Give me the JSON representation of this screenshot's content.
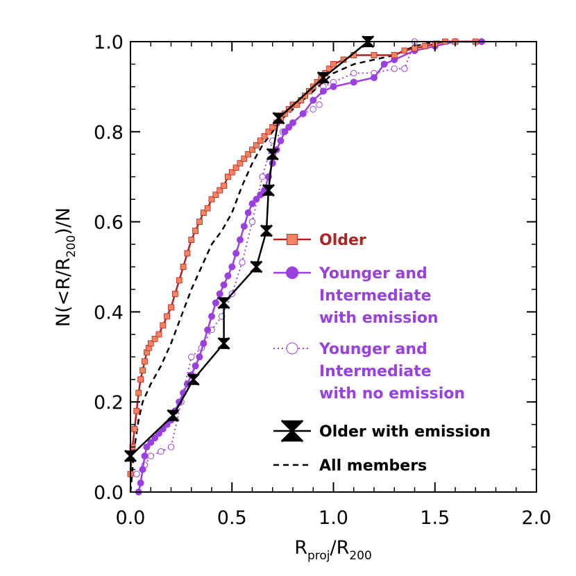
{
  "chart_data": {
    "type": "line",
    "xlabel_main": "R",
    "xlabel_sub1": "proj",
    "xlabel_mid": "/R",
    "xlabel_sub2": "200",
    "ylabel_a": "N(<R/R",
    "ylabel_sub": "200",
    "ylabel_b": ")/N",
    "xlim": [
      0,
      2
    ],
    "ylim": [
      0,
      1
    ],
    "x_ticks": [
      0,
      0.5,
      1,
      1.5,
      2
    ],
    "x_tick_labels": [
      "0.0",
      "0.5",
      "1.0",
      "1.5",
      "2.0"
    ],
    "y_ticks": [
      0,
      0.2,
      0.4,
      0.6,
      0.8,
      1
    ],
    "y_tick_labels": [
      "0.0",
      "0.2",
      "0.4",
      "0.6",
      "0.8",
      "1.0"
    ],
    "grid": false,
    "legend_position": "center-right",
    "series": [
      {
        "id": "older",
        "color": "#b22222",
        "marker_fill": "#f4845f",
        "marker": "square",
        "line": "solid",
        "legend": [
          "Older"
        ],
        "x": [
          0,
          0.01,
          0.02,
          0.03,
          0.04,
          0.05,
          0.06,
          0.07,
          0.08,
          0.09,
          0.1,
          0.12,
          0.14,
          0.16,
          0.18,
          0.2,
          0.22,
          0.24,
          0.26,
          0.28,
          0.3,
          0.32,
          0.34,
          0.36,
          0.38,
          0.4,
          0.42,
          0.44,
          0.46,
          0.48,
          0.5,
          0.52,
          0.54,
          0.56,
          0.58,
          0.6,
          0.62,
          0.64,
          0.66,
          0.68,
          0.7,
          0.72,
          0.74,
          0.76,
          0.78,
          0.8,
          0.82,
          0.84,
          0.86,
          0.88,
          0.9,
          0.92,
          0.94,
          0.96,
          0.98,
          1.0,
          1.05,
          1.1,
          1.2,
          1.3,
          1.35,
          1.4,
          1.45,
          1.5,
          1.55,
          1.6,
          1.7
        ],
        "y": [
          0.04,
          0.1,
          0.14,
          0.18,
          0.22,
          0.25,
          0.27,
          0.29,
          0.31,
          0.32,
          0.33,
          0.34,
          0.35,
          0.37,
          0.39,
          0.41,
          0.44,
          0.47,
          0.5,
          0.53,
          0.56,
          0.58,
          0.6,
          0.62,
          0.63,
          0.65,
          0.66,
          0.67,
          0.68,
          0.7,
          0.71,
          0.72,
          0.73,
          0.74,
          0.75,
          0.76,
          0.77,
          0.78,
          0.79,
          0.8,
          0.81,
          0.82,
          0.83,
          0.84,
          0.85,
          0.86,
          0.86,
          0.87,
          0.88,
          0.89,
          0.9,
          0.91,
          0.92,
          0.93,
          0.94,
          0.95,
          0.96,
          0.97,
          0.97,
          0.97,
          0.98,
          0.985,
          0.99,
          0.995,
          1.0,
          1.0,
          1.0
        ]
      },
      {
        "id": "younger-emission",
        "color": "#9b40e0",
        "marker_fill": "#9b40e0",
        "marker": "circle",
        "line": "solid",
        "legend": [
          "Younger and",
          "Intermediate",
          "with emission"
        ],
        "x": [
          0.04,
          0.05,
          0.06,
          0.07,
          0.08,
          0.1,
          0.12,
          0.14,
          0.16,
          0.18,
          0.2,
          0.22,
          0.24,
          0.26,
          0.28,
          0.3,
          0.32,
          0.34,
          0.36,
          0.38,
          0.4,
          0.42,
          0.44,
          0.46,
          0.48,
          0.5,
          0.52,
          0.54,
          0.56,
          0.58,
          0.6,
          0.62,
          0.64,
          0.66,
          0.68,
          0.7,
          0.72,
          0.74,
          0.76,
          0.78,
          0.8,
          0.85,
          0.9,
          0.95,
          1.0,
          1.1,
          1.2,
          1.25,
          1.3,
          1.4,
          1.5,
          1.6,
          1.73
        ],
        "y": [
          0.0,
          0.02,
          0.05,
          0.08,
          0.1,
          0.11,
          0.12,
          0.13,
          0.14,
          0.15,
          0.16,
          0.18,
          0.2,
          0.22,
          0.24,
          0.26,
          0.28,
          0.3,
          0.33,
          0.36,
          0.39,
          0.42,
          0.44,
          0.46,
          0.48,
          0.5,
          0.53,
          0.56,
          0.59,
          0.62,
          0.64,
          0.65,
          0.66,
          0.67,
          0.7,
          0.73,
          0.76,
          0.78,
          0.8,
          0.81,
          0.82,
          0.84,
          0.87,
          0.89,
          0.9,
          0.91,
          0.92,
          0.95,
          0.96,
          0.98,
          0.99,
          1.0,
          1.0
        ]
      },
      {
        "id": "younger-no-emission",
        "color": "#9b40e0",
        "marker_fill": "#ffffff",
        "marker": "open-circle",
        "line": "dotted",
        "legend": [
          "Younger and",
          "Intermediate",
          "with no emission"
        ],
        "x": [
          0.03,
          0.07,
          0.1,
          0.15,
          0.2,
          0.25,
          0.3,
          0.35,
          0.4,
          0.45,
          0.5,
          0.55,
          0.6,
          0.65,
          0.7,
          0.75,
          0.8,
          0.85,
          0.9,
          0.93,
          0.95,
          1.0,
          1.1,
          1.2,
          1.3,
          1.35,
          1.4
        ],
        "y": [
          0.04,
          0.06,
          0.08,
          0.09,
          0.1,
          0.2,
          0.3,
          0.32,
          0.36,
          0.39,
          0.44,
          0.51,
          0.6,
          0.7,
          0.78,
          0.8,
          0.82,
          0.84,
          0.85,
          0.86,
          0.9,
          0.91,
          0.93,
          0.93,
          0.94,
          0.94,
          1.0
        ]
      },
      {
        "id": "older-emission",
        "color": "#000000",
        "marker_fill": "#000000",
        "marker": "bowtie",
        "line": "solid",
        "legend": [
          "Older with emission"
        ],
        "x": [
          0.0,
          0.21,
          0.31,
          0.46,
          0.46,
          0.62,
          0.67,
          0.68,
          0.7,
          0.73,
          0.95,
          1.17
        ],
        "y": [
          0.08,
          0.17,
          0.25,
          0.33,
          0.42,
          0.5,
          0.58,
          0.67,
          0.75,
          0.83,
          0.92,
          1.0
        ]
      },
      {
        "id": "all-members",
        "color": "#000000",
        "marker": "none",
        "line": "dashed",
        "legend": [
          "All members"
        ],
        "x": [
          0.0,
          0.02,
          0.04,
          0.06,
          0.1,
          0.15,
          0.2,
          0.25,
          0.3,
          0.35,
          0.4,
          0.45,
          0.5,
          0.55,
          0.6,
          0.65,
          0.7,
          0.75,
          0.8,
          0.9,
          1.0,
          1.1,
          1.2,
          1.3,
          1.4,
          1.5,
          1.6,
          1.7
        ],
        "y": [
          0.0,
          0.1,
          0.16,
          0.2,
          0.24,
          0.28,
          0.33,
          0.39,
          0.45,
          0.5,
          0.55,
          0.58,
          0.62,
          0.68,
          0.73,
          0.77,
          0.8,
          0.83,
          0.85,
          0.89,
          0.93,
          0.95,
          0.96,
          0.97,
          0.99,
          1.0,
          1.0,
          1.0
        ]
      }
    ]
  }
}
